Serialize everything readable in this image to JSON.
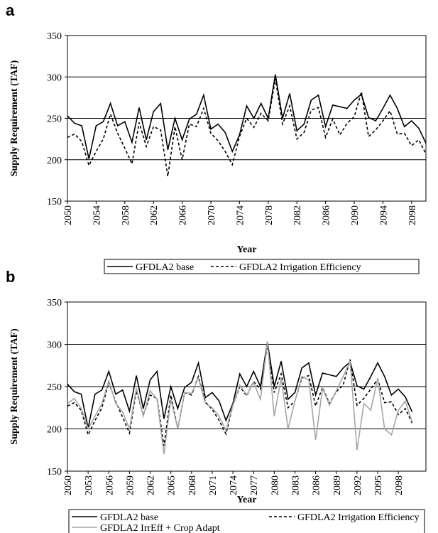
{
  "chart_data": [
    {
      "type": "line",
      "panel_label": "a",
      "ylabel": "Supply Requirement (TAF)",
      "xlabel": "Year",
      "x": [
        2050,
        2051,
        2052,
        2053,
        2054,
        2055,
        2056,
        2057,
        2058,
        2059,
        2060,
        2061,
        2062,
        2063,
        2064,
        2065,
        2066,
        2067,
        2068,
        2069,
        2070,
        2071,
        2072,
        2073,
        2074,
        2075,
        2076,
        2077,
        2078,
        2079,
        2080,
        2081,
        2082,
        2083,
        2084,
        2085,
        2086,
        2087,
        2088,
        2089,
        2090,
        2091,
        2092,
        2093,
        2094,
        2095,
        2096,
        2097,
        2098,
        2099,
        2100
      ],
      "xlim": [
        2050,
        2100
      ],
      "xticks": [
        2050,
        2054,
        2058,
        2062,
        2066,
        2070,
        2074,
        2078,
        2082,
        2086,
        2090,
        2094,
        2098
      ],
      "ylim": [
        150,
        350
      ],
      "yticks": [
        150,
        200,
        250,
        300,
        350
      ],
      "grid": true,
      "legend": "bottom",
      "series": [
        {
          "name": "GFDLA2 base",
          "color": "#000000",
          "linestyle": "solid",
          "values": [
            253,
            244,
            241,
            201,
            241,
            246,
            268,
            241,
            246,
            221,
            263,
            224,
            258,
            268,
            212,
            250,
            224,
            249,
            255,
            278,
            237,
            243,
            233,
            210,
            230,
            265,
            250,
            268,
            250,
            303,
            250,
            280,
            235,
            243,
            272,
            278,
            240,
            266,
            264,
            262,
            272,
            279,
            251,
            247,
            262,
            278,
            262,
            240,
            247,
            238,
            220
          ]
        },
        {
          "name": "GFDLA2 Irrigation Efficiency",
          "color": "#000000",
          "linestyle": "dashed",
          "values": [
            227,
            231,
            222,
            193,
            210,
            225,
            255,
            232,
            214,
            195,
            245,
            216,
            240,
            236,
            180,
            240,
            200,
            243,
            240,
            262,
            232,
            223,
            210,
            194,
            228,
            250,
            239,
            256,
            247,
            298,
            243,
            265,
            225,
            233,
            260,
            263,
            227,
            249,
            230,
            244,
            252,
            282,
            228,
            236,
            247,
            259,
            231,
            232,
            217,
            224,
            207
          ]
        }
      ]
    },
    {
      "type": "line",
      "panel_label": "b",
      "ylabel": "Supply Requirement (TAF)",
      "xlabel": "Year",
      "x": [
        2050,
        2051,
        2052,
        2053,
        2054,
        2055,
        2056,
        2057,
        2058,
        2059,
        2060,
        2061,
        2062,
        2063,
        2064,
        2065,
        2066,
        2067,
        2068,
        2069,
        2070,
        2071,
        2072,
        2073,
        2074,
        2075,
        2076,
        2077,
        2078,
        2079,
        2080,
        2081,
        2082,
        2083,
        2084,
        2085,
        2086,
        2087,
        2088,
        2089,
        2090,
        2091,
        2092,
        2093,
        2094,
        2095,
        2096,
        2097,
        2098,
        2099,
        2100
      ],
      "xlim": [
        2050,
        2102
      ],
      "xticks": [
        2050,
        2053,
        2056,
        2059,
        2062,
        2065,
        2068,
        2071,
        2074,
        2077,
        2080,
        2083,
        2086,
        2089,
        2092,
        2095,
        2098
      ],
      "ylim": [
        150,
        350
      ],
      "yticks": [
        150,
        200,
        250,
        300,
        350
      ],
      "grid": true,
      "legend": "bottom",
      "series": [
        {
          "name": "GFDLA2 base",
          "color": "#000000",
          "linestyle": "solid",
          "values": [
            253,
            244,
            241,
            201,
            241,
            246,
            268,
            241,
            246,
            221,
            263,
            224,
            258,
            268,
            212,
            250,
            224,
            249,
            255,
            278,
            237,
            243,
            233,
            210,
            230,
            265,
            250,
            268,
            250,
            303,
            250,
            280,
            235,
            243,
            272,
            278,
            240,
            266,
            264,
            262,
            272,
            279,
            251,
            247,
            262,
            278,
            262,
            240,
            247,
            238,
            220
          ]
        },
        {
          "name": "GFDLA2 Irrigation Efficiency",
          "color": "#000000",
          "linestyle": "dashed",
          "values": [
            227,
            231,
            222,
            193,
            210,
            225,
            255,
            232,
            214,
            195,
            245,
            216,
            240,
            236,
            180,
            240,
            200,
            243,
            240,
            262,
            232,
            223,
            210,
            194,
            228,
            250,
            239,
            256,
            247,
            298,
            243,
            265,
            225,
            233,
            260,
            263,
            227,
            249,
            230,
            244,
            252,
            282,
            228,
            236,
            247,
            259,
            231,
            232,
            217,
            224,
            207
          ]
        },
        {
          "name": "GFDLA2 IrrEff + Crop Adapt",
          "color": "#a6a6a6",
          "linestyle": "solid",
          "values": [
            230,
            236,
            224,
            200,
            215,
            230,
            257,
            230,
            220,
            200,
            248,
            215,
            245,
            235,
            170,
            235,
            200,
            243,
            242,
            260,
            230,
            225,
            215,
            198,
            228,
            252,
            240,
            255,
            235,
            303,
            215,
            260,
            200,
            233,
            262,
            258,
            187,
            248,
            228,
            245,
            262,
            280,
            175,
            230,
            222,
            260,
            200,
            193,
            222,
            233,
            208
          ]
        }
      ]
    }
  ]
}
